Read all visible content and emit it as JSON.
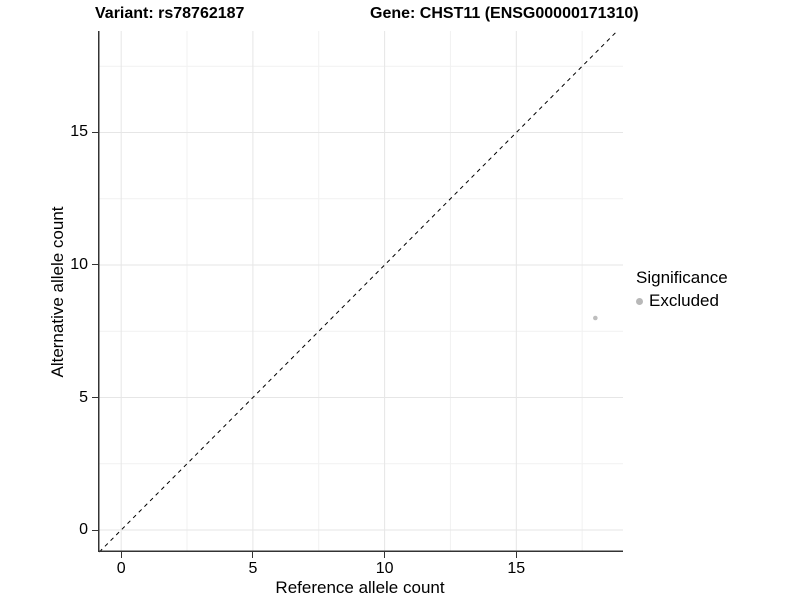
{
  "chart_data": {
    "type": "scatter",
    "title_variant": "Variant: rs78762187",
    "title_gene": "Gene: CHST11 (ENSG00000171310)",
    "xlabel": "Reference allele count",
    "ylabel": "Alternative allele count",
    "xlim": [
      -0.88,
      19.05
    ],
    "ylim": [
      -0.83,
      18.83
    ],
    "xticks": [
      0,
      5,
      10,
      15
    ],
    "yticks": [
      0,
      5,
      10,
      15
    ],
    "xminor": [
      2.5,
      7.5,
      12.5,
      17.5
    ],
    "yminor": [
      2.5,
      7.5,
      12.5,
      17.5
    ],
    "grid": true,
    "reference_line": {
      "type": "identity",
      "slope": 1,
      "intercept": 0,
      "style": "dashed",
      "color": "#000000"
    },
    "series": [
      {
        "name": "Excluded",
        "color": "#bebebe",
        "point_radius": 2.3,
        "points": [
          [
            18,
            8
          ]
        ]
      }
    ],
    "legend": {
      "title": "Significance",
      "position": "right",
      "items": [
        {
          "label": "Excluded",
          "color": "#b8b8b8"
        }
      ]
    },
    "colors": {
      "axis_line": "#333333",
      "grid_major": "#e6e6e6",
      "grid_minor": "#f1f1f1",
      "text": "#000000",
      "background": "#ffffff"
    }
  }
}
